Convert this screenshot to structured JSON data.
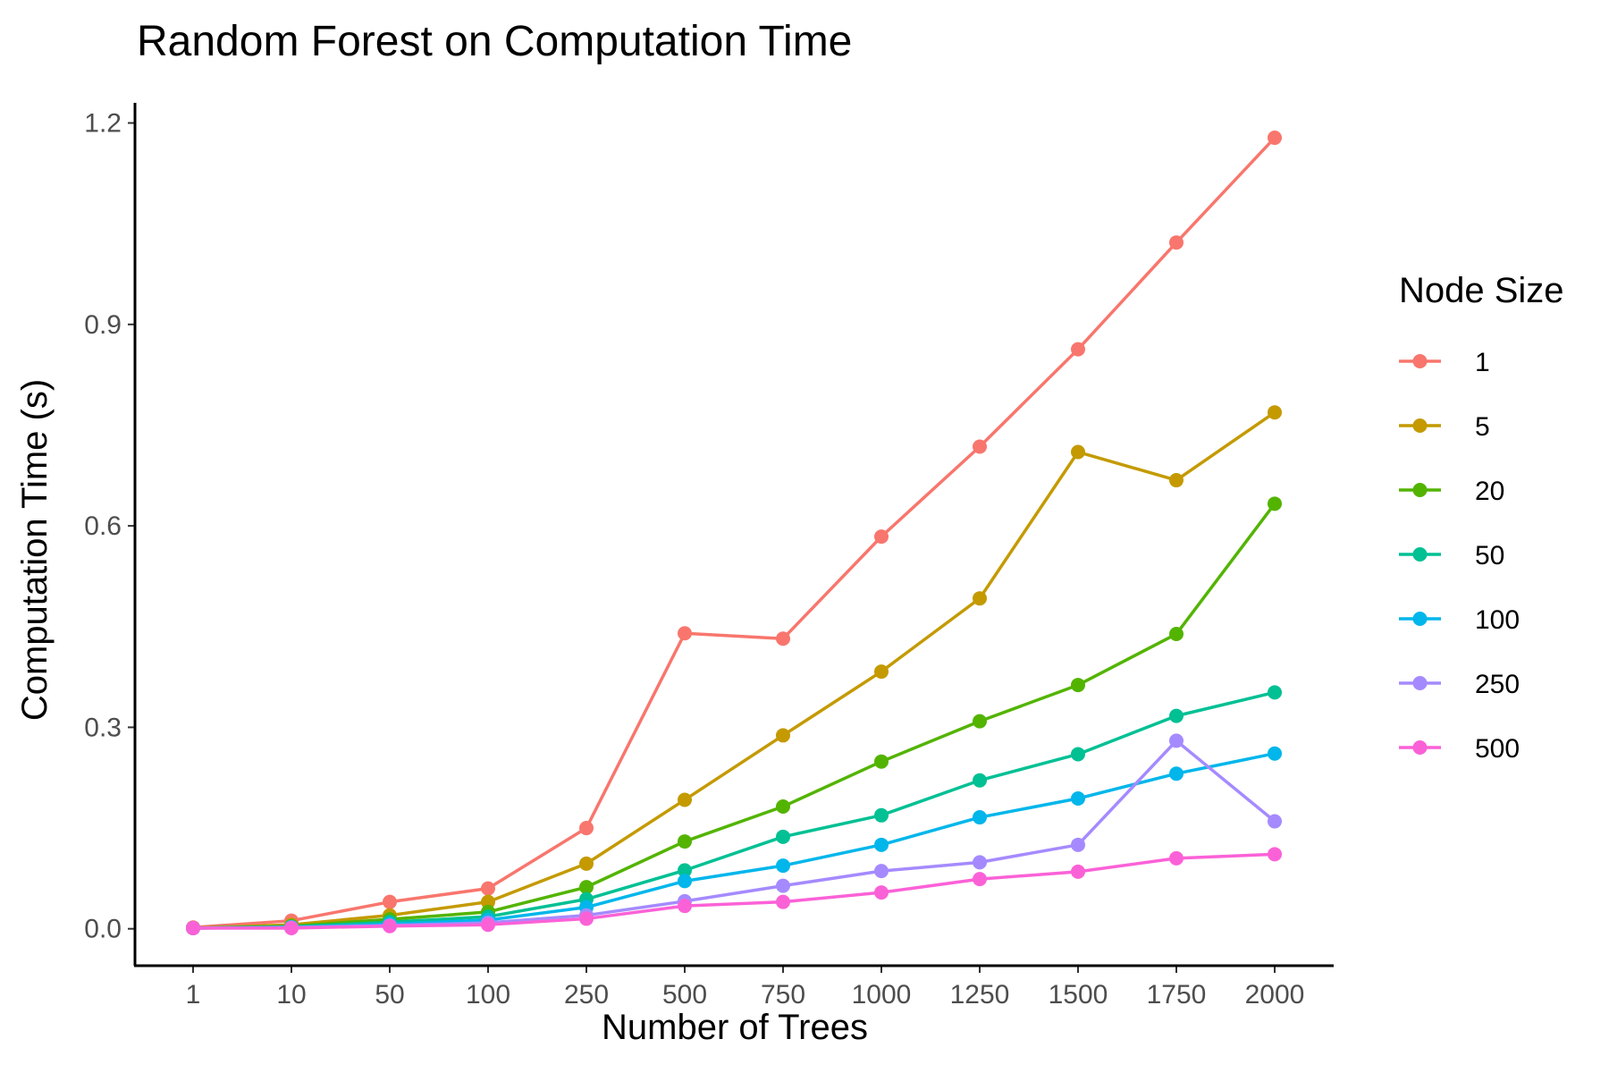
{
  "chart_data": {
    "type": "line",
    "title": "Random Forest on Computation Time",
    "xlabel": "Number of Trees",
    "ylabel": "Computation Time (s)",
    "categories": [
      "1",
      "10",
      "50",
      "100",
      "250",
      "500",
      "750",
      "1000",
      "1250",
      "1500",
      "1750",
      "2000"
    ],
    "ylim": [
      -0.055,
      1.23
    ],
    "yticks": [
      0.0,
      0.3,
      0.6,
      0.9,
      1.2
    ],
    "ytick_labels": [
      "0.0",
      "0.3",
      "0.6",
      "0.9",
      "1.2"
    ],
    "grid": false,
    "legend": {
      "title": "Node Size",
      "position": "right"
    },
    "series": [
      {
        "name": "1",
        "color": "#F8766D",
        "values": [
          0.002,
          0.012,
          0.04,
          0.06,
          0.15,
          0.44,
          0.432,
          0.584,
          0.718,
          0.863,
          1.022,
          1.178
        ]
      },
      {
        "name": "5",
        "color": "#C49A00",
        "values": [
          0.001,
          0.006,
          0.02,
          0.04,
          0.097,
          0.192,
          0.288,
          0.383,
          0.492,
          0.71,
          0.668,
          0.769
        ]
      },
      {
        "name": "20",
        "color": "#53B400",
        "values": [
          0.001,
          0.004,
          0.014,
          0.025,
          0.062,
          0.13,
          0.182,
          0.249,
          0.309,
          0.363,
          0.439,
          0.633
        ]
      },
      {
        "name": "50",
        "color": "#00C094",
        "values": [
          0.001,
          0.003,
          0.01,
          0.018,
          0.044,
          0.087,
          0.137,
          0.169,
          0.221,
          0.26,
          0.317,
          0.352
        ]
      },
      {
        "name": "100",
        "color": "#00B6EB",
        "values": [
          0.001,
          0.002,
          0.007,
          0.013,
          0.032,
          0.071,
          0.094,
          0.125,
          0.166,
          0.194,
          0.231,
          0.261
        ]
      },
      {
        "name": "250",
        "color": "#A58AFF",
        "values": [
          0.001,
          0.002,
          0.005,
          0.009,
          0.02,
          0.041,
          0.064,
          0.086,
          0.099,
          0.125,
          0.28,
          0.16
        ]
      },
      {
        "name": "500",
        "color": "#FB61D7",
        "values": [
          0.001,
          0.001,
          0.004,
          0.006,
          0.015,
          0.034,
          0.04,
          0.054,
          0.074,
          0.085,
          0.105,
          0.111
        ]
      }
    ]
  }
}
